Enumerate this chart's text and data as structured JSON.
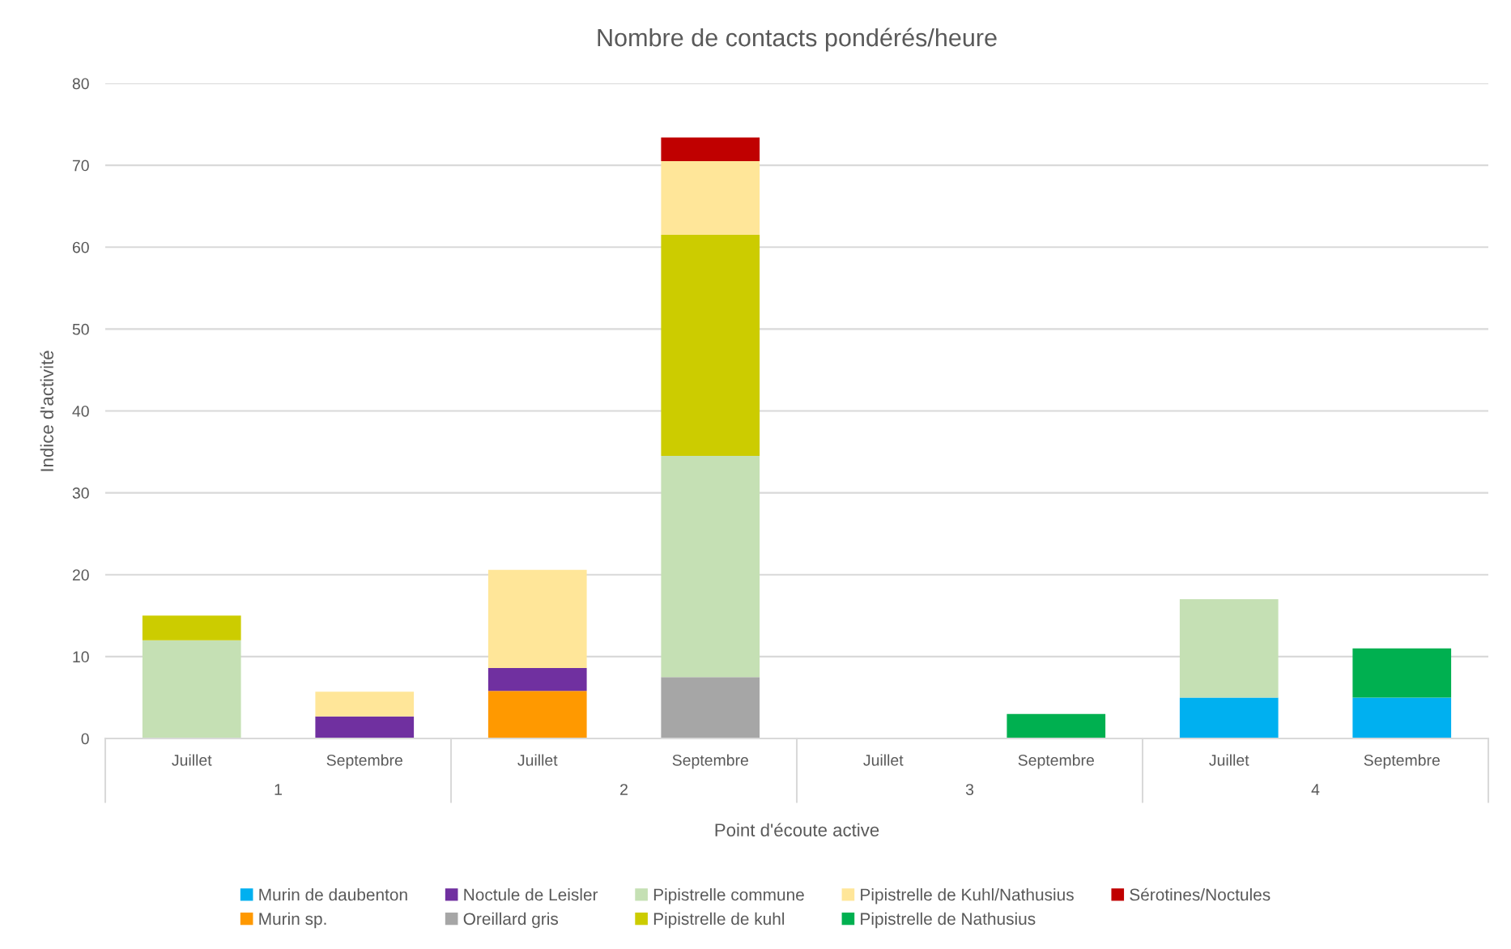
{
  "chart_data": {
    "type": "bar",
    "stacked": true,
    "title": "Nombre de contacts pondérés/heure",
    "xlabel": "Point d'écoute active",
    "ylabel": "Indice d'activité",
    "categories": [
      "Juillet",
      "Septembre",
      "Juillet",
      "Septembre",
      "Juillet",
      "Septembre",
      "Juillet",
      "Septembre"
    ],
    "annotations": [
      "1",
      "2",
      "3",
      "4"
    ],
    "ylim": [
      0,
      80
    ],
    "yticks": [
      0,
      10,
      20,
      30,
      40,
      50,
      60,
      70,
      80
    ],
    "grid": "y",
    "legend": "bottom",
    "series": [
      {
        "name": "Murin de daubenton",
        "color": "#00b0f0",
        "values": [
          null,
          null,
          null,
          null,
          null,
          null,
          5,
          5
        ]
      },
      {
        "name": "Murin sp.",
        "color": "#ff9900",
        "values": [
          null,
          null,
          5.8,
          null,
          null,
          null,
          null,
          null
        ]
      },
      {
        "name": "Noctule de Leisler",
        "color": "#7030a0",
        "values": [
          null,
          2.7,
          2.8,
          null,
          null,
          null,
          null,
          null
        ]
      },
      {
        "name": "Oreillard gris",
        "color": "#a6a6a6",
        "values": [
          null,
          null,
          null,
          7.5,
          null,
          null,
          null,
          null
        ]
      },
      {
        "name": "Pipistrelle commune",
        "color": "#c5e0b4",
        "values": [
          12,
          null,
          null,
          27,
          null,
          null,
          12,
          null
        ]
      },
      {
        "name": "Pipistrelle de kuhl",
        "color": "#cccc00",
        "values": [
          3,
          null,
          null,
          27,
          null,
          null,
          null,
          null
        ]
      },
      {
        "name": "Pipistrelle de Kuhl/Nathusius",
        "color": "#ffe699",
        "values": [
          null,
          3,
          12,
          9,
          null,
          null,
          null,
          null
        ]
      },
      {
        "name": "Pipistrelle de Nathusius",
        "color": "#00b050",
        "values": [
          null,
          null,
          null,
          null,
          null,
          3,
          null,
          6
        ]
      },
      {
        "name": "Sérotines/Noctules",
        "color": "#c00000",
        "values": [
          null,
          null,
          null,
          2.9,
          null,
          null,
          null,
          null
        ]
      }
    ]
  }
}
